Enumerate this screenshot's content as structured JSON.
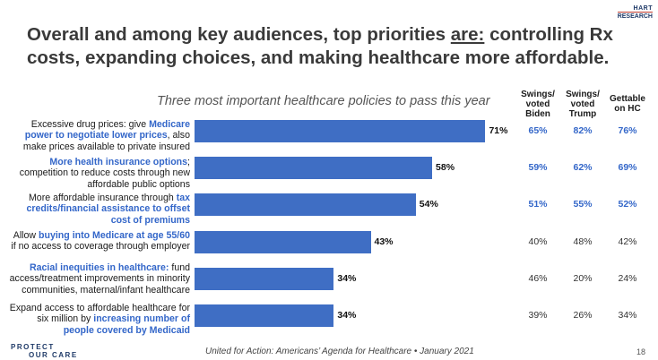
{
  "logo": {
    "line1": "HART",
    "line2": "RESEARCH"
  },
  "title": {
    "part1": "Overall and among key audiences, top priorities ",
    "underlined": "are:",
    "part2": "  controlling Rx costs, expanding choices, and making healthcare more affordable."
  },
  "columns": {
    "biden": {
      "l1": "Swings/",
      "l2": "voted",
      "l3": "Biden"
    },
    "trump": {
      "l1": "Swings/",
      "l2": "voted",
      "l3": "Trump"
    },
    "gettable": {
      "l1": "Gettable",
      "l2": "on HC"
    }
  },
  "chart_data": {
    "type": "bar",
    "orientation": "horizontal",
    "title": "Three most important healthcare policies to pass this year",
    "xlim": [
      0,
      100
    ],
    "categories": [
      "Excessive drug prices: give Medicare power to negotiate lower prices, also make prices available to private insured",
      "More health insurance options; competition to reduce costs through new affordable public options",
      "More affordable insurance through tax credits/financial assistance to offset cost of premiums",
      "Allow buying into Medicare at age 55/60 if no access to coverage through employer",
      "Racial inequities in healthcare: fund access/treatment improvements in minority communities, maternal/infant healthcare",
      "Expand access to affordable healthcare for six million by increasing number of people covered by Medicaid"
    ],
    "values": [
      71,
      58,
      54,
      43,
      34,
      34
    ],
    "value_labels": [
      "71%",
      "58%",
      "54%",
      "43%",
      "34%",
      "34%"
    ],
    "bar_color": "#3f6ec4",
    "highlight_color": "#3467c9",
    "labels": [
      {
        "pre": "Excessive drug prices: give ",
        "hl": "Medicare power to negotiate lower prices",
        "post": ", also make prices available to private insured"
      },
      {
        "pre": "",
        "hl": "More health insurance options",
        "post": "; competition to reduce costs through new affordable public options"
      },
      {
        "pre": "More affordable insurance through ",
        "hl": "tax credits/financial assistance to offset cost of premiums",
        "post": ""
      },
      {
        "pre": "Allow ",
        "hl": "buying into Medicare at age 55/60",
        "post": " if no access to coverage through employer"
      },
      {
        "pre": "",
        "hl": "Racial inequities in healthcare:",
        "post": "  fund access/treatment improvements in minority communities, maternal/infant healthcare"
      },
      {
        "pre": "Expand access to affordable healthcare for six million by ",
        "hl": "increasing number of people covered by Medicaid",
        "post": ""
      }
    ],
    "table": {
      "biden": [
        "65%",
        "59%",
        "51%",
        "40%",
        "46%",
        "39%"
      ],
      "trump": [
        "82%",
        "62%",
        "55%",
        "48%",
        "20%",
        "26%"
      ],
      "gettable": [
        "76%",
        "69%",
        "52%",
        "42%",
        "24%",
        "34%"
      ],
      "highlighted_rows": 3
    }
  },
  "footer": {
    "org_line1": "PROTECT",
    "org_line2": "OUR CARE",
    "source": "United for Action: Americans’ Agenda for Healthcare • January 2021",
    "page": "18"
  }
}
